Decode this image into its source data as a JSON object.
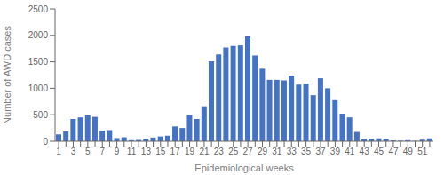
{
  "chart_data": {
    "type": "bar",
    "xlabel": "Epidemiological weeks",
    "ylabel": "Number of AWD cases",
    "categories": [
      "1",
      null,
      "3",
      null,
      "5",
      null,
      "7",
      null,
      "9",
      null,
      "11",
      null,
      "13",
      null,
      "15",
      null,
      "17",
      null,
      "19",
      null,
      "21",
      null,
      "23",
      null,
      "25",
      null,
      "27",
      null,
      "29",
      null,
      "31",
      null,
      "33",
      null,
      "35",
      null,
      "37",
      null,
      "39",
      null,
      "41",
      null,
      "43",
      null,
      "45",
      null,
      "47",
      null,
      "49",
      null,
      "51",
      null
    ],
    "values": [
      130,
      185,
      420,
      450,
      490,
      460,
      200,
      210,
      60,
      75,
      20,
      25,
      45,
      70,
      90,
      105,
      280,
      250,
      500,
      420,
      660,
      1510,
      1640,
      1770,
      1800,
      1810,
      1980,
      1620,
      1370,
      1160,
      1160,
      1150,
      1240,
      1070,
      1090,
      870,
      1190,
      1000,
      775,
      520,
      450,
      175,
      40,
      50,
      55,
      45,
      15,
      10,
      20,
      5,
      30,
      55
    ],
    "color": "#4472C4",
    "ylim": [
      0,
      2500
    ],
    "yticks": [
      0,
      500,
      1000,
      1500,
      2000,
      2500
    ],
    "grid": false
  }
}
